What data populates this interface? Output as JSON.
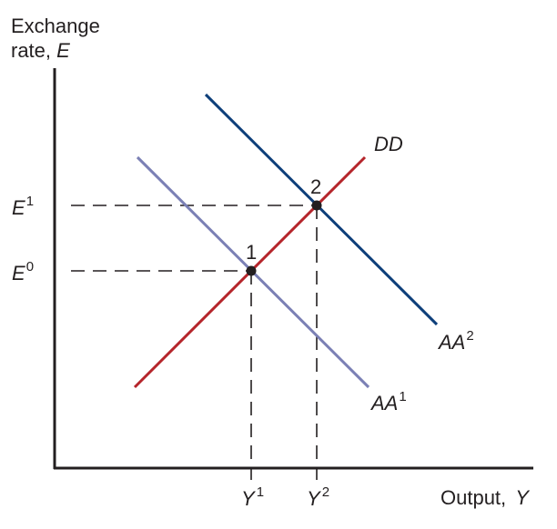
{
  "axes": {
    "y_label_line1": "Exchange",
    "y_label_line2_text": "rate, ",
    "y_label_line2_var": "E",
    "x_label_text": "Output, ",
    "x_label_var": "Y"
  },
  "ticks": {
    "e1_var": "E",
    "e1_sup": "1",
    "e0_var": "E",
    "e0_sup": "0",
    "y1_var": "Y",
    "y1_sup": "1",
    "y2_var": "Y",
    "y2_sup": "2"
  },
  "curves": {
    "dd": {
      "label": "DD",
      "color": "#b5252b"
    },
    "aa1": {
      "label_var": "AA",
      "label_sup": "1",
      "color": "#7b80b5"
    },
    "aa2": {
      "label_var": "AA",
      "label_sup": "2",
      "color": "#0e3f7a"
    }
  },
  "points": {
    "p1": "1",
    "p2": "2"
  },
  "colors": {
    "axis": "#231f20",
    "guide": "#231f20",
    "point": "#231f20"
  }
}
